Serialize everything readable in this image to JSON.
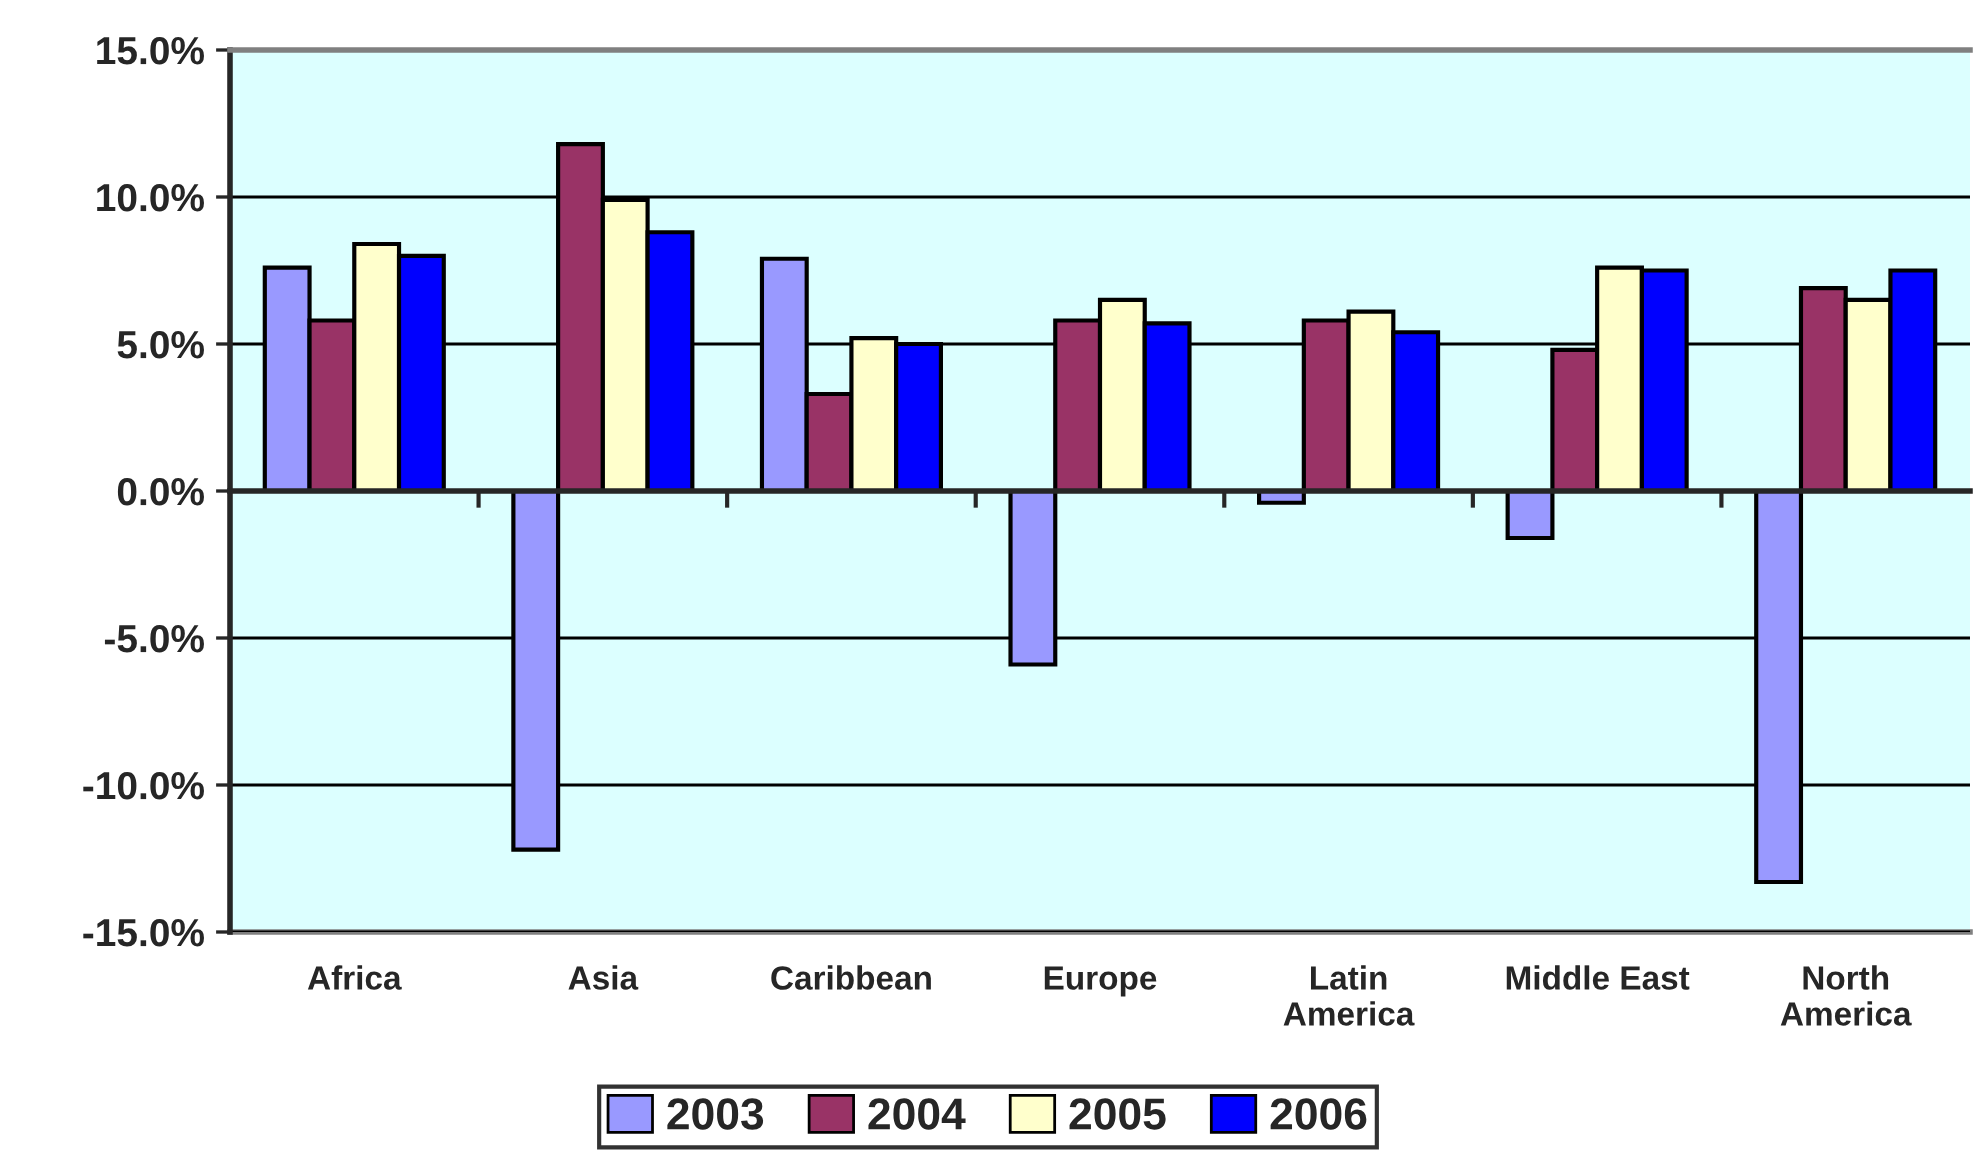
{
  "chart_data": {
    "type": "bar",
    "categories": [
      "Africa",
      "Asia",
      "Caribbean",
      "Europe",
      "Latin\nAmerica",
      "Middle East",
      "North\nAmerica"
    ],
    "series": [
      {
        "name": "2003",
        "color": "#9999ff",
        "values": [
          7.6,
          -12.2,
          7.9,
          -5.9,
          -0.4,
          -1.6,
          -13.3
        ]
      },
      {
        "name": "2004",
        "color": "#993366",
        "values": [
          5.8,
          11.8,
          3.3,
          5.8,
          5.8,
          4.8,
          6.9
        ]
      },
      {
        "name": "2005",
        "color": "#ffffcc",
        "values": [
          8.4,
          9.9,
          5.2,
          6.5,
          6.1,
          7.6,
          6.5
        ]
      },
      {
        "name": "2006",
        "color": "#0000ff",
        "values": [
          8.0,
          8.8,
          5.0,
          5.7,
          5.4,
          7.5,
          7.5
        ]
      }
    ],
    "ylim": [
      -15,
      15
    ],
    "yticks": [
      {
        "value": -15,
        "label": "-15.0%"
      },
      {
        "value": -10,
        "label": "-10.0%"
      },
      {
        "value": -5,
        "label": "-5.0%"
      },
      {
        "value": 0,
        "label": "0.0%"
      },
      {
        "value": 5,
        "label": "5.0%"
      },
      {
        "value": 10,
        "label": "10.0%"
      },
      {
        "value": 15,
        "label": "15.0%"
      }
    ],
    "grid": "y",
    "legend": "bottom"
  }
}
